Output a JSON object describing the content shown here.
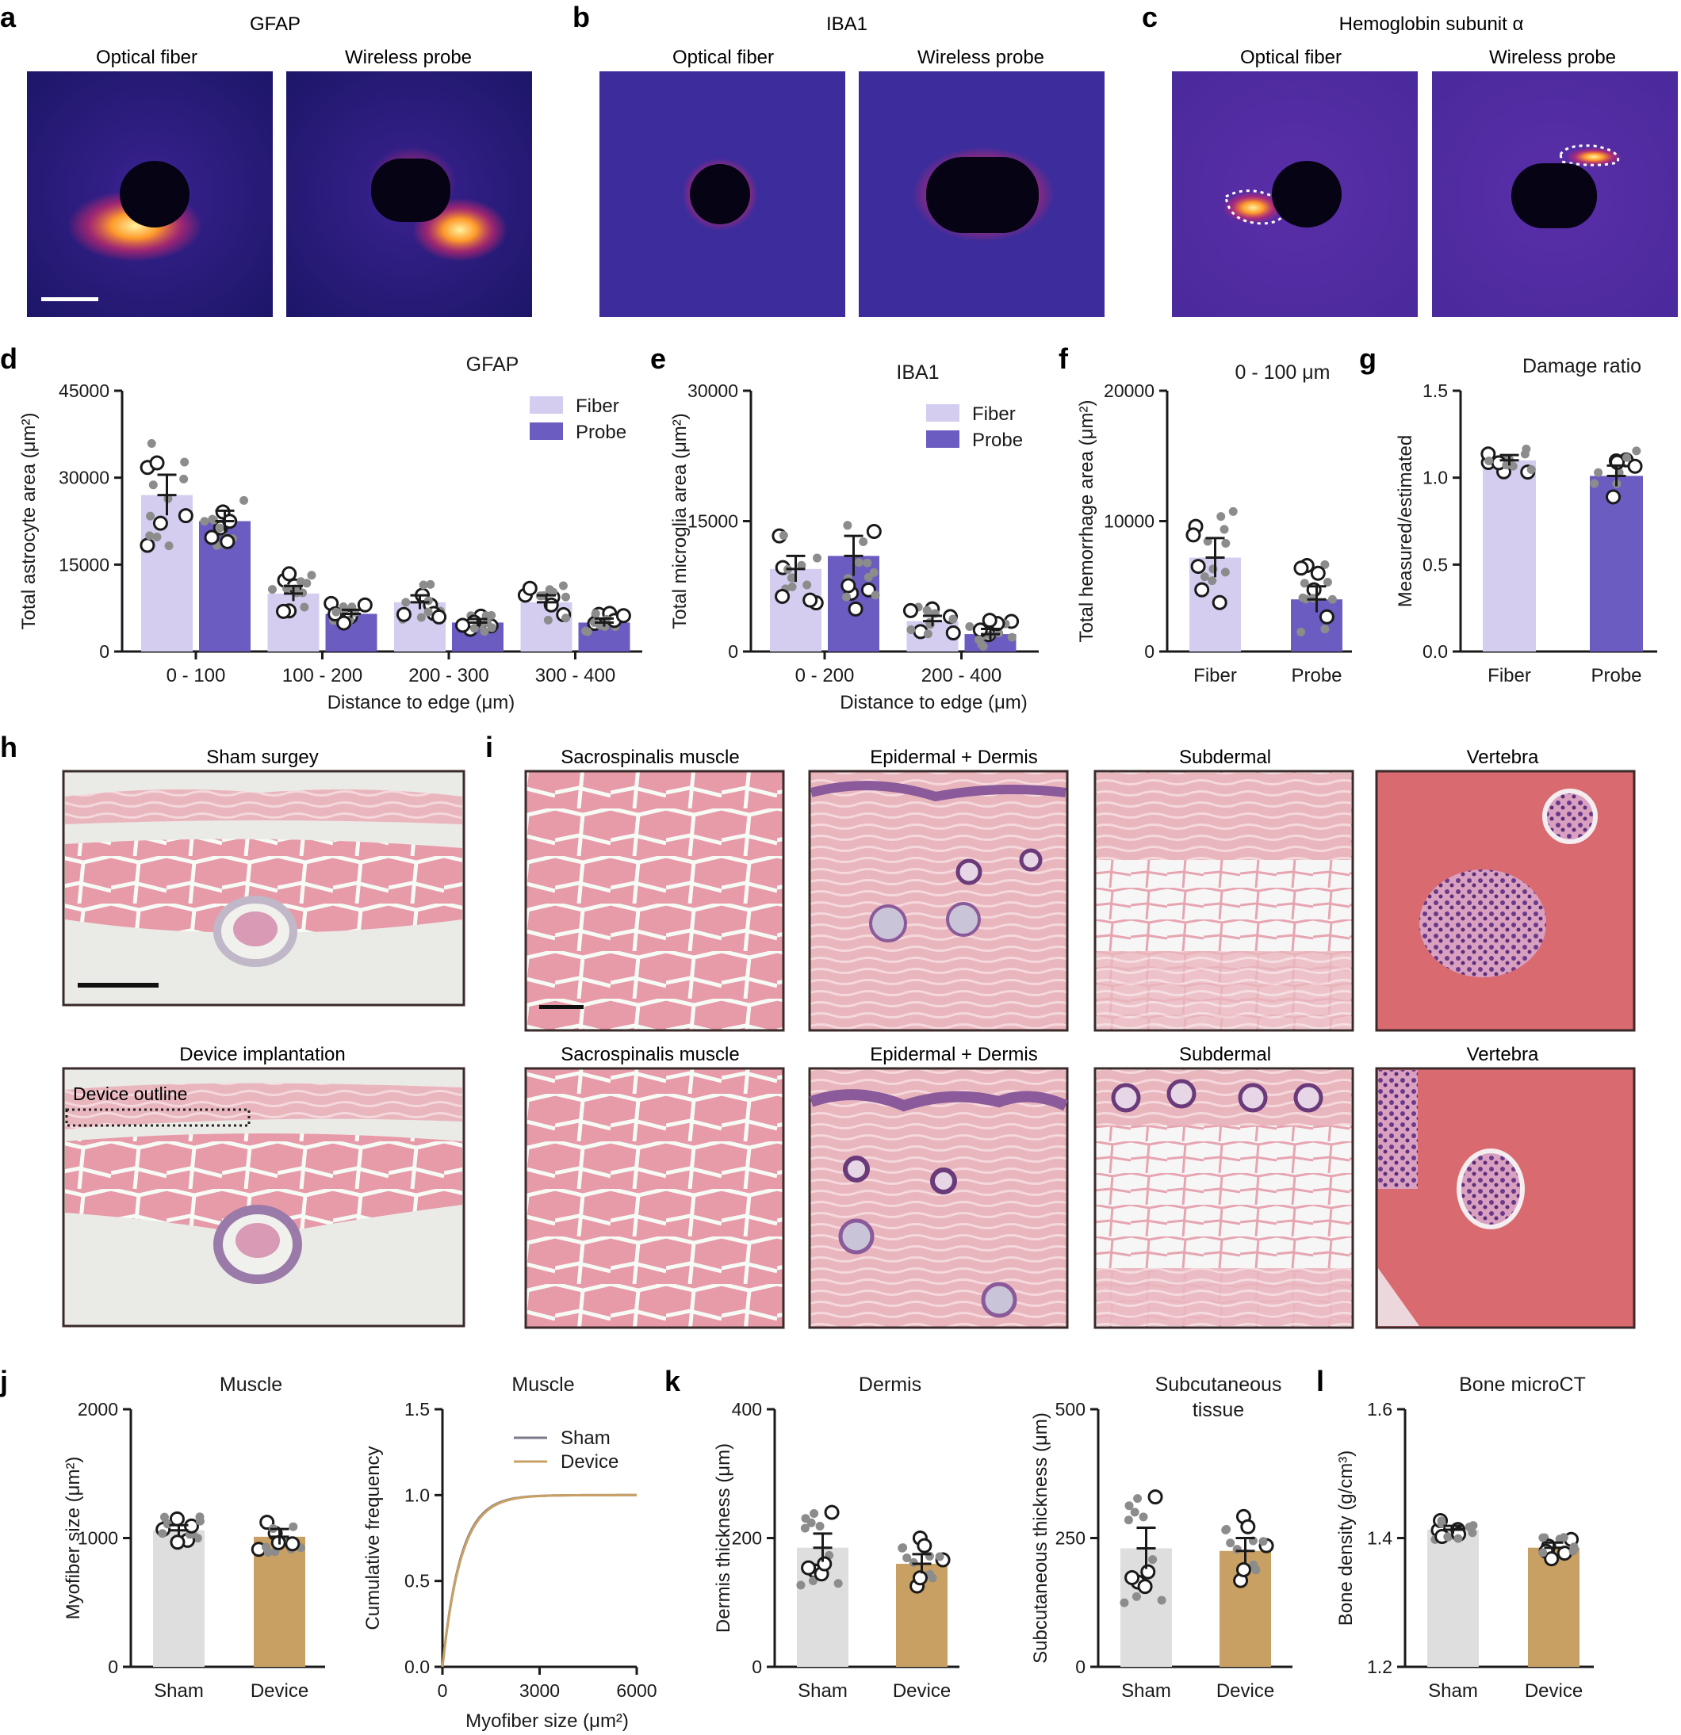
{
  "colors": {
    "fiber": "#d4cdf0",
    "probe": "#6a5cc0",
    "sham": "#dedede",
    "device": "#c9a064",
    "point_grey": "#8c8c8c",
    "fluor_dark": "#1e1670",
    "fluor_mid": "#4a27a0",
    "he_pink": "#e8a4b0",
    "he_bg": "#eef4ef"
  },
  "panels": {
    "a": {
      "letter": "a",
      "title": "GFAP",
      "left": "Optical fiber",
      "right": "Wireless probe"
    },
    "b": {
      "letter": "b",
      "title": "IBA1",
      "left": "Optical fiber",
      "right": "Wireless probe"
    },
    "c": {
      "letter": "c",
      "title": "Hemoglobin subunit α",
      "left": "Optical fiber",
      "right": "Wireless probe"
    },
    "h": {
      "letter": "h",
      "top": "Sham surgey",
      "bottom": "Device implantation",
      "device_outline": "Device outline"
    },
    "i": {
      "letter": "i",
      "labels": [
        "Sacrospinalis muscle",
        "Epidermal + Dermis",
        "Subdermal",
        "Vertebra"
      ]
    }
  },
  "chart_data": [
    {
      "id": "d",
      "type": "bar",
      "title": "GFAP",
      "categories": [
        "0 - 100",
        "100 - 200",
        "200 - 300",
        "300 - 400"
      ],
      "series": [
        {
          "name": "Fiber",
          "values": [
            27000,
            10000,
            8500,
            8500
          ],
          "sem": [
            3500,
            1300,
            1200,
            1200
          ]
        },
        {
          "name": "Probe",
          "values": [
            22500,
            6500,
            5000,
            5000
          ],
          "sem": [
            1800,
            700,
            600,
            700
          ]
        }
      ],
      "xlabel": "Distance to edge (μm)",
      "ylabel": "Total astrocyte area (μm²)",
      "ylim": [
        0,
        45000
      ],
      "yticks": [
        "0",
        "15000",
        "30000",
        "45000"
      ],
      "legend": "top-right"
    },
    {
      "id": "e",
      "type": "bar",
      "title": "IBA1",
      "categories": [
        "0 - 200",
        "200 - 400"
      ],
      "series": [
        {
          "name": "Fiber",
          "values": [
            9500,
            3500
          ],
          "sem": [
            1500,
            600
          ]
        },
        {
          "name": "Probe",
          "values": [
            11000,
            2000
          ],
          "sem": [
            2300,
            600
          ]
        }
      ],
      "xlabel": "Distance to edge (μm)",
      "ylabel": "Total microglia area (μm²)",
      "ylim": [
        0,
        30000
      ],
      "yticks": [
        "0",
        "15000",
        "30000"
      ],
      "legend": "top-right"
    },
    {
      "id": "f",
      "type": "bar",
      "title": "0 - 100 μm",
      "categories": [
        "Fiber",
        "Probe"
      ],
      "values": [
        7200,
        4000
      ],
      "sem": [
        1500,
        1000
      ],
      "ylabel": "Total hemorrhage area (μm²)",
      "ylim": [
        0,
        20000
      ],
      "yticks": [
        "0",
        "10000",
        "20000"
      ]
    },
    {
      "id": "g",
      "type": "bar",
      "title": "Damage ratio",
      "categories": [
        "Fiber",
        "Probe"
      ],
      "values": [
        1.1,
        1.01
      ],
      "sem": [
        0.03,
        0.06
      ],
      "ylabel": "Measured/estimated",
      "ylim": [
        0,
        1.5
      ],
      "yticks": [
        "0.0",
        "0.5",
        "1.0",
        "1.5"
      ]
    },
    {
      "id": "j1",
      "type": "bar",
      "title": "Muscle",
      "categories": [
        "Sham",
        "Device"
      ],
      "values": [
        1060,
        1010
      ],
      "sem": [
        40,
        60
      ],
      "ylabel": "Myofiber size (μm²)",
      "ylim": [
        0,
        2000
      ],
      "yticks": [
        "0",
        "1000",
        "2000"
      ]
    },
    {
      "id": "j2",
      "type": "line",
      "title": "Muscle",
      "series": [
        {
          "name": "Sham"
        },
        {
          "name": "Device"
        }
      ],
      "xlabel": "Myofiber size (μm²)",
      "ylabel": "Cumulative frequency",
      "xlim": [
        0,
        6000
      ],
      "ylim": [
        0,
        1.5
      ],
      "xticks": [
        "0",
        "3000",
        "6000"
      ],
      "yticks": [
        "0.0",
        "0.5",
        "1.0",
        "1.5"
      ],
      "legend": "top-right"
    },
    {
      "id": "k1",
      "type": "bar",
      "title": "Dermis",
      "categories": [
        "Sham",
        "Device"
      ],
      "values": [
        185,
        160
      ],
      "sem": [
        22,
        15
      ],
      "ylabel": "Dermis thickness (μm)",
      "ylim": [
        0,
        400
      ],
      "yticks": [
        "0",
        "200",
        "400"
      ]
    },
    {
      "id": "k2",
      "type": "bar",
      "title": "Subcutaneous tissue",
      "categories": [
        "Sham",
        "Device"
      ],
      "values": [
        230,
        225
      ],
      "sem": [
        40,
        25
      ],
      "ylabel": "Subcutaneous thickness (μm)",
      "ylim": [
        0,
        500
      ],
      "yticks": [
        "0",
        "250",
        "500"
      ]
    },
    {
      "id": "l",
      "type": "bar",
      "title": "Bone microCT",
      "categories": [
        "Sham",
        "Device"
      ],
      "values": [
        1.413,
        1.385
      ],
      "sem": [
        0.006,
        0.008
      ],
      "ylabel": "Bone density (g/cm³)",
      "ylim": [
        1.2,
        1.6
      ],
      "yticks": [
        "1.2",
        "1.4",
        "1.6"
      ]
    }
  ],
  "letters": {
    "d": "d",
    "e": "e",
    "f": "f",
    "g": "g",
    "j": "j",
    "k": "k",
    "l": "l"
  }
}
